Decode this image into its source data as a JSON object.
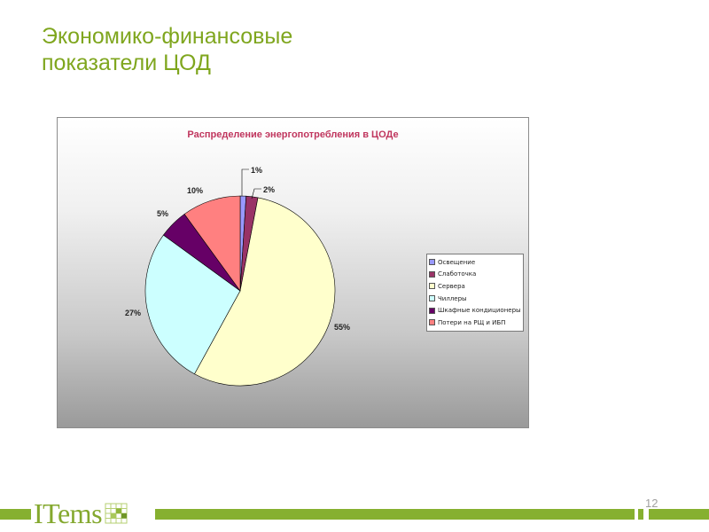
{
  "slide": {
    "title_line1": "Экономико-финансовые",
    "title_line2": "показатели ЦОД",
    "page_number": "12",
    "accent_color": "#7fa61e"
  },
  "logo": {
    "text": "ITems",
    "icon": "grid-cube-icon"
  },
  "chart_data": {
    "type": "pie",
    "title": "Распределение энергопотребления в ЦОДе",
    "legend_position": "right",
    "slices": [
      {
        "label": "Освещение",
        "value": 1,
        "value_label": "1%",
        "color": "#9999ff"
      },
      {
        "label": "Слаботочка",
        "value": 2,
        "value_label": "2%",
        "color": "#993366"
      },
      {
        "label": "Сервера",
        "value": 55,
        "value_label": "55%",
        "color": "#ffffcc"
      },
      {
        "label": "Чиллеры",
        "value": 27,
        "value_label": "27%",
        "color": "#ccffff"
      },
      {
        "label": "Шкафные кондиционеры",
        "value": 5,
        "value_label": "5%",
        "color": "#660066"
      },
      {
        "label": "Потери на РЩ и ИБП",
        "value": 10,
        "value_label": "10%",
        "color": "#ff8080"
      }
    ]
  }
}
